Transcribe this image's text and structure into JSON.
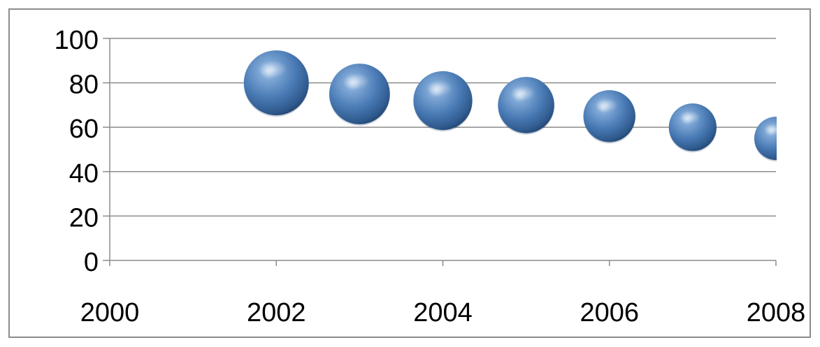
{
  "chart_data": {
    "type": "bubble",
    "title": "",
    "xlabel": "",
    "ylabel": "",
    "xlim": [
      2000,
      2008
    ],
    "ylim": [
      0,
      100
    ],
    "x_ticks": [
      "2000",
      "2002",
      "2004",
      "2006",
      "2008"
    ],
    "y_ticks": [
      "0",
      "20",
      "40",
      "60",
      "80",
      "100"
    ],
    "grid": "horizontal",
    "series": [
      {
        "color": "#4a7bb5",
        "points": [
          {
            "x": 2002,
            "y": 80,
            "size": 7.5
          },
          {
            "x": 2003,
            "y": 75,
            "size": 7.0
          },
          {
            "x": 2004,
            "y": 72,
            "size": 6.8
          },
          {
            "x": 2005,
            "y": 70,
            "size": 6.5
          },
          {
            "x": 2006,
            "y": 65,
            "size": 6.0
          },
          {
            "x": 2007,
            "y": 60,
            "size": 5.5
          },
          {
            "x": 2008,
            "y": 55,
            "size": 5.0
          }
        ]
      }
    ]
  }
}
